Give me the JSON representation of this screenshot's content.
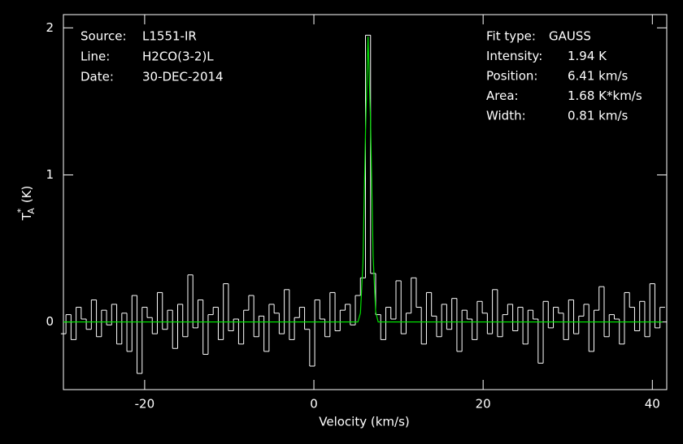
{
  "chart_data": {
    "type": "spectrum",
    "xlabel": "Velocity (km/s)",
    "ylabel": {
      "main": "T",
      "sup": "*",
      "sub": "A",
      "unit": "(K)"
    },
    "xlim": [
      -29.6,
      41.7
    ],
    "ylim": [
      -0.46,
      2.09
    ],
    "xticks": [
      -20,
      0,
      20,
      40
    ],
    "yticks": [
      0,
      1,
      2
    ],
    "info_left": [
      {
        "label": "Source:",
        "value": "L1551-IR"
      },
      {
        "label": "Line:",
        "value": "H2CO(3-2)L"
      },
      {
        "label": "Date:",
        "value": "30-DEC-2014"
      }
    ],
    "info_right": [
      {
        "label": "Fit type:",
        "value": "GAUSS"
      },
      {
        "label": "Intensity:",
        "value": "1.94 K"
      },
      {
        "label": "Position:",
        "value": "6.41 km/s"
      },
      {
        "label": "Area:",
        "value": "1.68 K*km/s"
      },
      {
        "label": "Width:",
        "value": "0.81 km/s"
      }
    ],
    "series": [
      {
        "style": "step",
        "color": "#ffffff",
        "width": 0.6,
        "x": [
          -29.6,
          -29.0,
          -28.4,
          -27.8,
          -27.2,
          -26.6,
          -26.0,
          -25.4,
          -24.8,
          -24.2,
          -23.6,
          -23.0,
          -22.4,
          -21.8,
          -21.2,
          -20.6,
          -20.0,
          -19.4,
          -18.8,
          -18.2,
          -17.6,
          -17.0,
          -16.4,
          -15.8,
          -15.2,
          -14.6,
          -14.0,
          -13.4,
          -12.8,
          -12.2,
          -11.6,
          -11.0,
          -10.4,
          -9.8,
          -9.2,
          -8.6,
          -8.0,
          -7.4,
          -6.8,
          -6.2,
          -5.6,
          -5.0,
          -4.4,
          -3.8,
          -3.2,
          -2.6,
          -2.0,
          -1.4,
          -0.8,
          -0.2,
          0.4,
          1.0,
          1.6,
          2.2,
          2.8,
          3.4,
          4.0,
          4.6,
          5.2,
          5.8,
          6.4,
          7.0,
          7.6,
          8.2,
          8.8,
          9.4,
          10.0,
          10.6,
          11.2,
          11.8,
          12.4,
          13.0,
          13.6,
          14.2,
          14.8,
          15.4,
          16.0,
          16.6,
          17.2,
          17.8,
          18.4,
          19.0,
          19.6,
          20.2,
          20.8,
          21.4,
          22.0,
          22.6,
          23.2,
          23.8,
          24.4,
          25.0,
          25.6,
          26.2,
          26.8,
          27.4,
          28.0,
          28.6,
          29.2,
          29.8,
          30.4,
          31.0,
          31.6,
          32.2,
          32.8,
          33.4,
          34.0,
          34.6,
          35.2,
          35.8,
          36.4,
          37.0,
          37.6,
          38.2,
          38.8,
          39.4,
          40.0,
          40.6,
          41.2
        ],
        "values": [
          -0.08,
          0.05,
          -0.12,
          0.1,
          0.02,
          -0.05,
          0.15,
          -0.1,
          0.08,
          -0.02,
          0.12,
          -0.15,
          0.06,
          -0.2,
          0.18,
          -0.35,
          0.1,
          0.03,
          -0.08,
          0.2,
          -0.05,
          0.08,
          -0.18,
          0.12,
          -0.1,
          0.32,
          -0.04,
          0.15,
          -0.22,
          0.05,
          0.1,
          -0.12,
          0.26,
          -0.06,
          0.02,
          -0.15,
          0.08,
          0.18,
          -0.1,
          0.04,
          -0.2,
          0.12,
          0.06,
          -0.08,
          0.22,
          -0.12,
          0.03,
          0.1,
          -0.05,
          -0.3,
          0.15,
          0.02,
          -0.1,
          0.2,
          -0.06,
          0.08,
          0.12,
          -0.02,
          0.18,
          0.3,
          1.95,
          0.33,
          0.05,
          -0.12,
          0.1,
          0.02,
          0.28,
          -0.08,
          0.06,
          0.3,
          0.1,
          -0.15,
          0.2,
          0.04,
          -0.1,
          0.12,
          -0.05,
          0.16,
          -0.2,
          0.08,
          0.02,
          -0.12,
          0.14,
          0.06,
          -0.08,
          0.22,
          -0.1,
          0.05,
          0.12,
          -0.06,
          0.1,
          -0.15,
          0.08,
          0.02,
          -0.28,
          0.14,
          -0.04,
          0.1,
          0.06,
          -0.12,
          0.15,
          -0.08,
          0.04,
          0.12,
          -0.2,
          0.08,
          0.24,
          -0.1,
          0.05,
          0.02,
          -0.15,
          0.2,
          0.1,
          -0.06,
          0.14,
          -0.1,
          0.26,
          -0.04,
          0.1
        ]
      },
      {
        "style": "line",
        "color": "#00e000",
        "x": [
          -29.6,
          5.2,
          5.5,
          5.8,
          6.1,
          6.4,
          6.7,
          7.0,
          7.3,
          7.6,
          41.2
        ],
        "values": [
          0,
          0,
          0.06,
          0.4,
          1.29,
          1.94,
          1.36,
          0.45,
          0.07,
          0,
          0
        ]
      }
    ]
  }
}
